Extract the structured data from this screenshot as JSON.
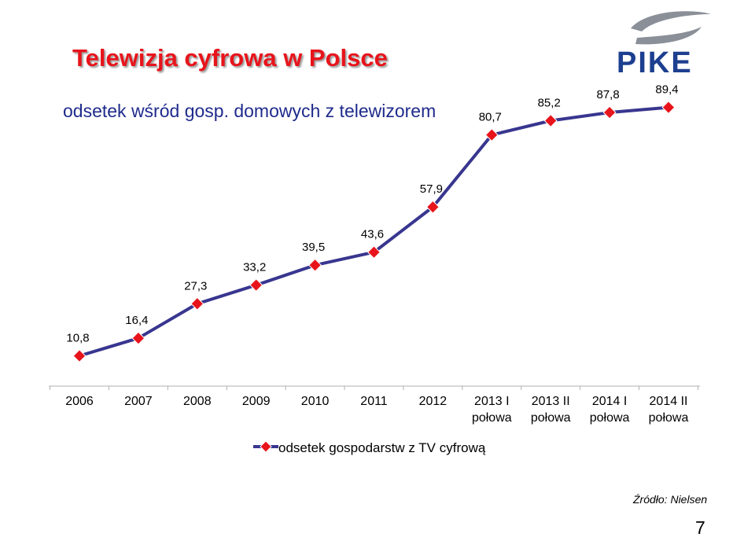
{
  "slide": {
    "title": "Telewizja cyfrowa w Polsce",
    "subtitle": "odsetek wśród gosp. domowych z telewizorem",
    "source": "Źródło: Nielsen",
    "page_number": "7",
    "logo_text": "PIKE"
  },
  "colors": {
    "title": "#e8141b",
    "subtitle": "#1f2b8c",
    "line": "#38368f",
    "marker": "#e8141b",
    "logo": "#1d3f8f"
  },
  "chart_data": {
    "type": "line",
    "categories": [
      [
        "2006"
      ],
      [
        "2007"
      ],
      [
        "2008"
      ],
      [
        "2009"
      ],
      [
        "2010"
      ],
      [
        "2011"
      ],
      [
        "2012"
      ],
      [
        "2013 I",
        "połowa"
      ],
      [
        "2013 II",
        "połowa"
      ],
      [
        "2014 I",
        "połowa"
      ],
      [
        "2014 II",
        "połowa"
      ]
    ],
    "series": [
      {
        "name": "odsetek gospodarstw  z TV cyfrową",
        "values": [
          10.8,
          16.4,
          27.3,
          33.2,
          39.5,
          43.6,
          57.9,
          80.7,
          85.2,
          87.8,
          89.4
        ],
        "labels": [
          "10,8",
          "16,4",
          "27,3",
          "33,2",
          "39,5",
          "43,6",
          "57,9",
          "80,7",
          "85,2",
          "87,8",
          "89,4"
        ]
      }
    ],
    "ylim": [
      0,
      100
    ],
    "grid": false,
    "legend": "bottom",
    "marker": "diamond"
  }
}
